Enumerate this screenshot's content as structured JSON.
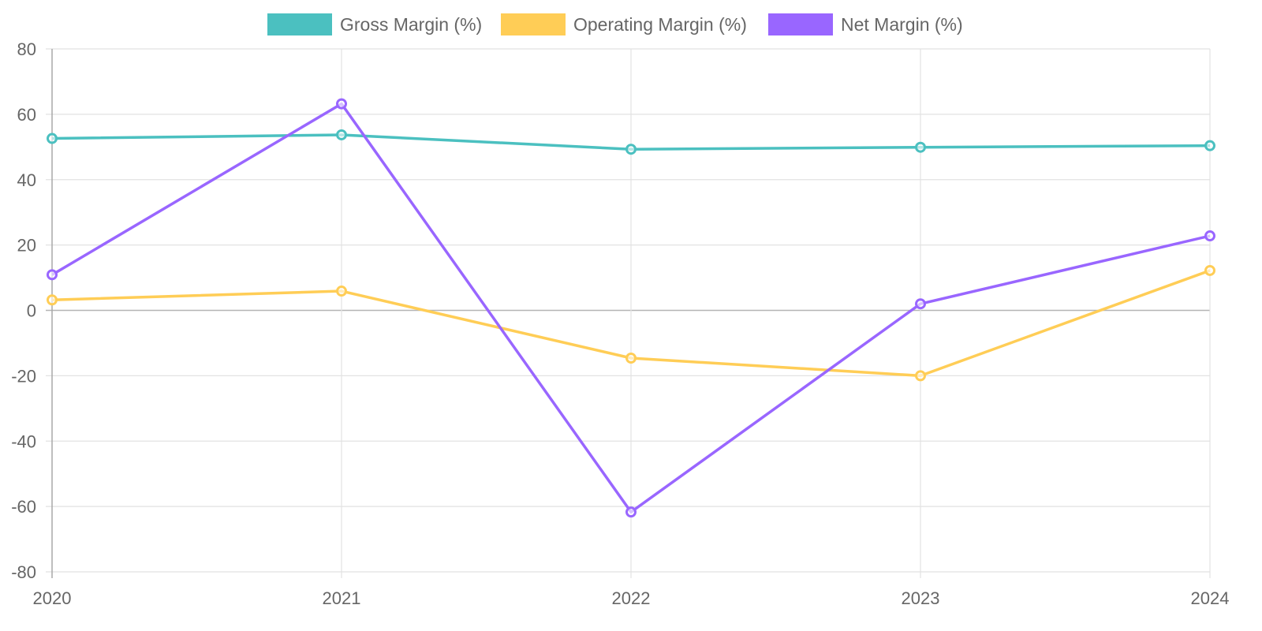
{
  "chart_data": {
    "type": "line",
    "title": "",
    "xlabel": "",
    "ylabel": "",
    "categories": [
      "2020",
      "2021",
      "2022",
      "2023",
      "2024"
    ],
    "ylim": [
      -80,
      80
    ],
    "yticks": [
      "80",
      "60",
      "40",
      "20",
      "0",
      "-20",
      "-40",
      "-60",
      "-80"
    ],
    "ytick_values": [
      80,
      60,
      40,
      20,
      0,
      -20,
      -40,
      -60,
      -80
    ],
    "grid": true,
    "legend_position": "top",
    "series": [
      {
        "name": "Gross Margin (%)",
        "color": "#4BC0C0",
        "values": [
          52.6,
          53.7,
          49.3,
          49.9,
          50.4
        ]
      },
      {
        "name": "Operating Margin (%)",
        "color": "#FFCD56",
        "values": [
          3.2,
          5.9,
          -14.6,
          -20.0,
          12.2
        ]
      },
      {
        "name": "Net Margin (%)",
        "color": "#9966FF",
        "values": [
          10.9,
          63.2,
          -61.7,
          2.0,
          22.8
        ]
      }
    ]
  }
}
